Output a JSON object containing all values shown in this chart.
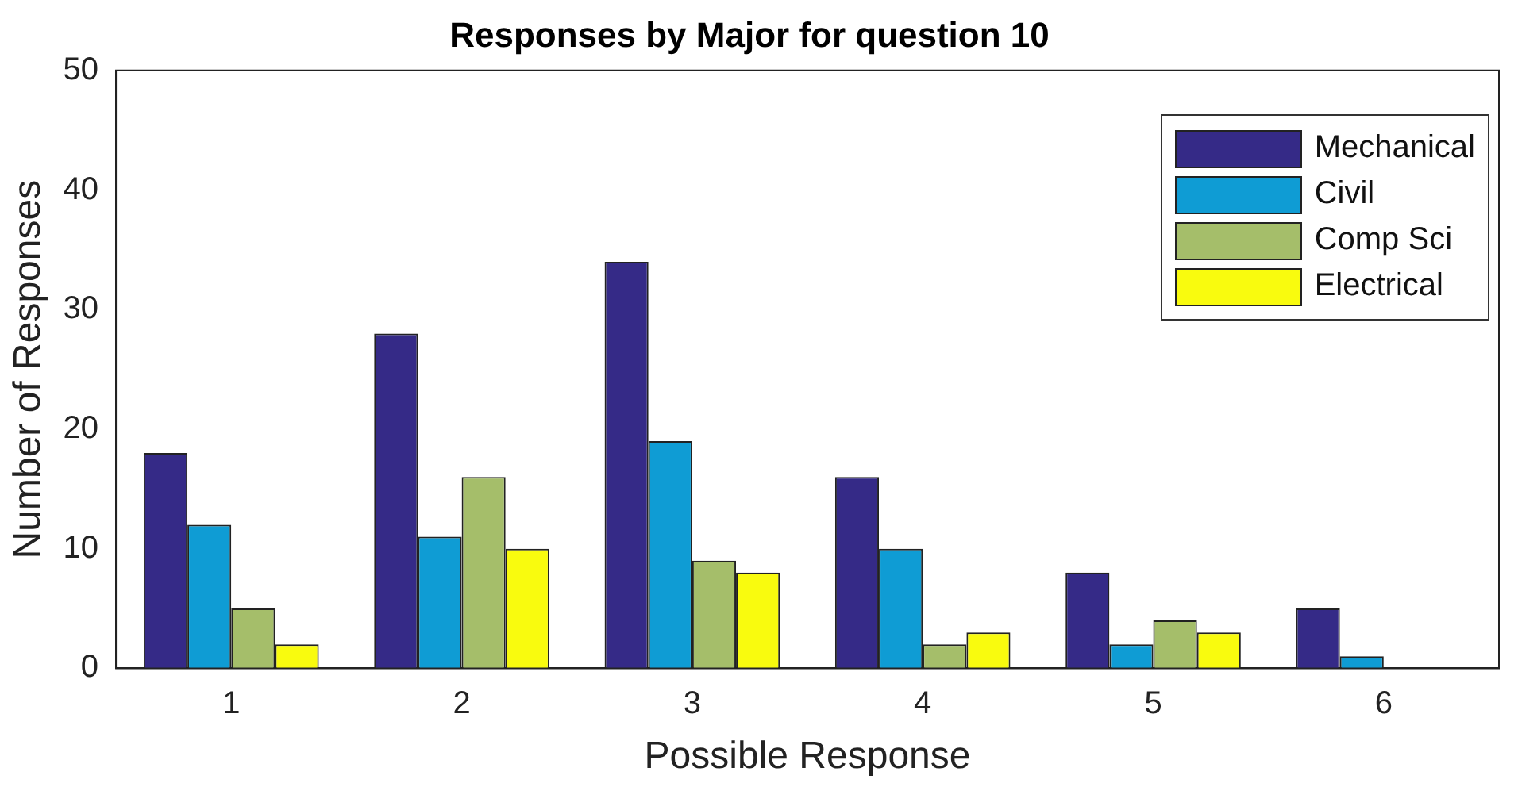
{
  "chart_data": {
    "type": "bar",
    "title": "Responses by Major for question 10",
    "xlabel": "Possible Response",
    "ylabel": "Number of Responses",
    "categories": [
      "1",
      "2",
      "3",
      "4",
      "5",
      "6"
    ],
    "series": [
      {
        "name": "Mechanical",
        "color": "#352a87",
        "values": [
          18,
          28,
          34,
          16,
          8,
          5
        ]
      },
      {
        "name": "Civil",
        "color": "#0f9cd4",
        "values": [
          12,
          11,
          19,
          10,
          2,
          1
        ]
      },
      {
        "name": "Comp Sci",
        "color": "#a5be6a",
        "values": [
          5,
          16,
          9,
          2,
          4,
          0
        ]
      },
      {
        "name": "Electrical",
        "color": "#f9fb0e",
        "values": [
          2,
          10,
          8,
          3,
          3,
          0
        ]
      }
    ],
    "ylim": [
      0,
      50
    ],
    "yticks": [
      0,
      10,
      20,
      30,
      40,
      50
    ],
    "grid": false,
    "legend": "top right"
  }
}
